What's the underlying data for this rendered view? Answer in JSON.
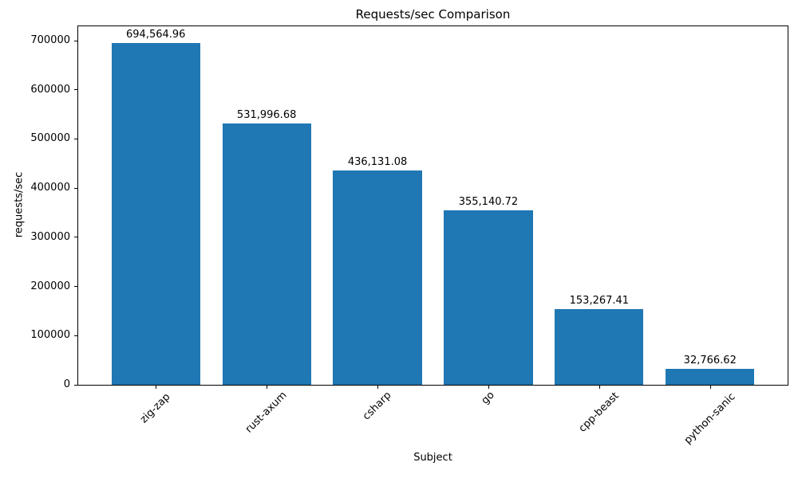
{
  "chart_data": {
    "type": "bar",
    "title": "Requests/sec Comparison",
    "xlabel": "Subject",
    "ylabel": "requests/sec",
    "categories": [
      "zig-zap",
      "rust-axum",
      "csharp",
      "go",
      "cpp-beast",
      "python-sanic"
    ],
    "values": [
      694564.96,
      531996.68,
      436131.08,
      355140.72,
      153267.41,
      32766.62
    ],
    "value_labels": [
      "694,564.96",
      "531,996.68",
      "436,131.08",
      "355,140.72",
      "153,267.41",
      "32,766.62"
    ],
    "bar_color": "#1f77b4",
    "text_color": "#000000",
    "background_color": "#ffffff",
    "ylim": [
      0,
      729300
    ],
    "yticks": [
      0,
      100000,
      200000,
      300000,
      400000,
      500000,
      600000,
      700000
    ],
    "ytick_labels": [
      "0",
      "100000",
      "200000",
      "300000",
      "400000",
      "500000",
      "600000",
      "700000"
    ],
    "xtick_rotation": 45,
    "grid": false,
    "legend": "none"
  }
}
